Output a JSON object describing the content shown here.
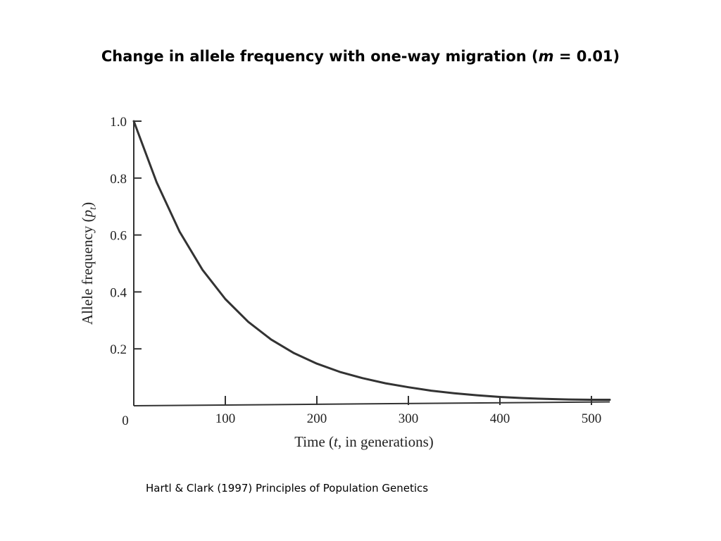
{
  "title": {
    "prefix": "Change in allele frequency with one-way migration (",
    "italic": "m",
    "suffix": " = 0.01)"
  },
  "citation": "Hartl & Clark (1997) Principles of Population Genetics",
  "chart_data": {
    "type": "line",
    "xlabel": {
      "prefix": "Time (",
      "italic": "t",
      "suffix": ", in generations)"
    },
    "ylabel": {
      "prefix": "Allele frequency (",
      "italic": "p",
      "sub": "t",
      "suffix": ")"
    },
    "xlim": [
      0,
      520
    ],
    "ylim": [
      0,
      1.0
    ],
    "x_ticks": [
      100,
      200,
      300,
      400,
      500
    ],
    "x_tick_labels": [
      "100",
      "200",
      "300",
      "400",
      "500"
    ],
    "origin_label": "0",
    "y_ticks": [
      0.2,
      0.4,
      0.6,
      0.8,
      1.0
    ],
    "y_tick_labels": [
      "0.2",
      "0.4",
      "0.6",
      "0.8",
      "1.0"
    ],
    "grid": false,
    "line_color": "#333333",
    "series": [
      {
        "x": [
          0,
          25,
          50,
          75,
          100,
          125,
          150,
          175,
          200,
          225,
          250,
          275,
          300,
          325,
          350,
          375,
          400,
          425,
          450,
          475,
          500,
          520
        ],
        "y": [
          1.0,
          0.785,
          0.612,
          0.478,
          0.375,
          0.295,
          0.233,
          0.185,
          0.148,
          0.119,
          0.097,
          0.079,
          0.065,
          0.053,
          0.044,
          0.037,
          0.031,
          0.027,
          0.024,
          0.022,
          0.021,
          0.021
        ]
      }
    ]
  }
}
